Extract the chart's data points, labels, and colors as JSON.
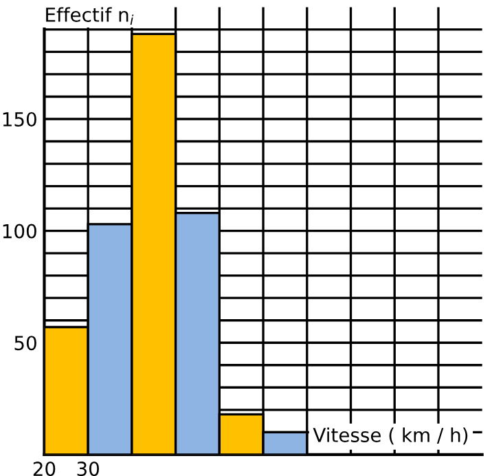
{
  "chart_data": {
    "type": "histogram",
    "xlabel": "Vitesse ( km / h)",
    "ylabel": "Effectif n$_{i}$",
    "bins": [
      20,
      30,
      40,
      50,
      60,
      70,
      80
    ],
    "values": [
      57,
      103,
      188,
      108,
      18,
      10
    ],
    "colors": [
      "#ffc000",
      "#8eb4e3",
      "#ffc000",
      "#8eb4e3",
      "#ffc000",
      "#8eb4e3"
    ],
    "xlim": [
      20,
      120
    ],
    "ylim": [
      0,
      200
    ],
    "xticks": [
      20,
      30,
      {
        "value": 40,
        "label": null
      },
      {
        "value": 50,
        "label": null
      },
      {
        "value": 60,
        "label": null
      },
      {
        "value": 70,
        "label": null
      },
      {
        "value": 80,
        "label": null
      },
      {
        "value": 90,
        "label": null
      },
      {
        "value": 100,
        "label": null
      },
      {
        "value": 110,
        "label": null
      }
    ],
    "yticks": [
      {
        "value": 10,
        "label": null
      },
      {
        "value": 20,
        "label": null
      },
      {
        "value": 30,
        "label": null
      },
      {
        "value": 40,
        "label": null
      },
      50,
      {
        "value": 60,
        "label": null
      },
      {
        "value": 70,
        "label": null
      },
      {
        "value": 80,
        "label": null
      },
      {
        "value": 90,
        "label": null
      },
      100,
      {
        "value": 110,
        "label": null
      },
      {
        "value": 120,
        "label": null
      },
      {
        "value": 130,
        "label": null
      },
      {
        "value": 140,
        "label": null
      },
      150,
      {
        "value": 160,
        "label": null
      },
      {
        "value": 170,
        "label": null
      },
      {
        "value": 180,
        "label": null
      },
      {
        "value": 190,
        "label": null
      }
    ],
    "grid": true
  }
}
